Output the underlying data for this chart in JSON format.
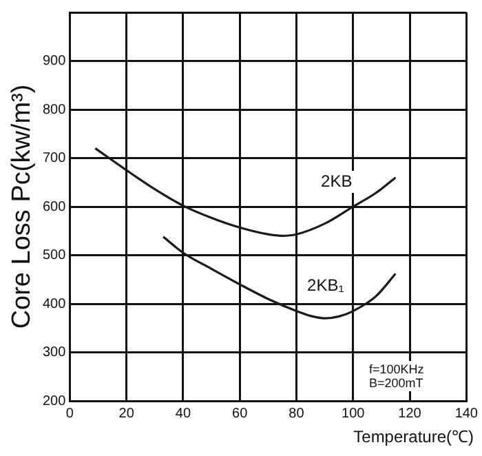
{
  "chart_data": {
    "type": "line",
    "xlabel": "Temperature(℃)",
    "ylabel": "Core Loss Pc(kw/m³)",
    "xlim": [
      0,
      140
    ],
    "xticks": [
      0,
      20,
      40,
      60,
      80,
      100,
      120,
      140
    ],
    "ylim": [
      200,
      1000
    ],
    "yticks": [
      200,
      300,
      400,
      500,
      600,
      700,
      800,
      900,
      {
        "value": 1000,
        "label": null
      }
    ],
    "grid": true,
    "legend": false,
    "marker": "none",
    "line_style": "solid",
    "series": [
      {
        "name": "2KB",
        "color": "#1a1a1a",
        "x": [
          9,
          20,
          30,
          40,
          50,
          60,
          70,
          75,
          80,
          90,
          100,
          108,
          115
        ],
        "values": [
          720,
          675,
          636,
          602,
          577,
          557,
          543,
          540,
          543,
          565,
          600,
          628,
          660
        ]
      },
      {
        "name": "2KB₁",
        "color": "#1a1a1a",
        "x": [
          33,
          40,
          50,
          60,
          70,
          80,
          85,
          90,
          95,
          100,
          108,
          115
        ],
        "values": [
          538,
          505,
          472,
          440,
          410,
          385,
          375,
          370,
          374,
          385,
          415,
          462
        ]
      }
    ],
    "annotations": [
      "f=100KHz",
      "B=200mT"
    ]
  }
}
